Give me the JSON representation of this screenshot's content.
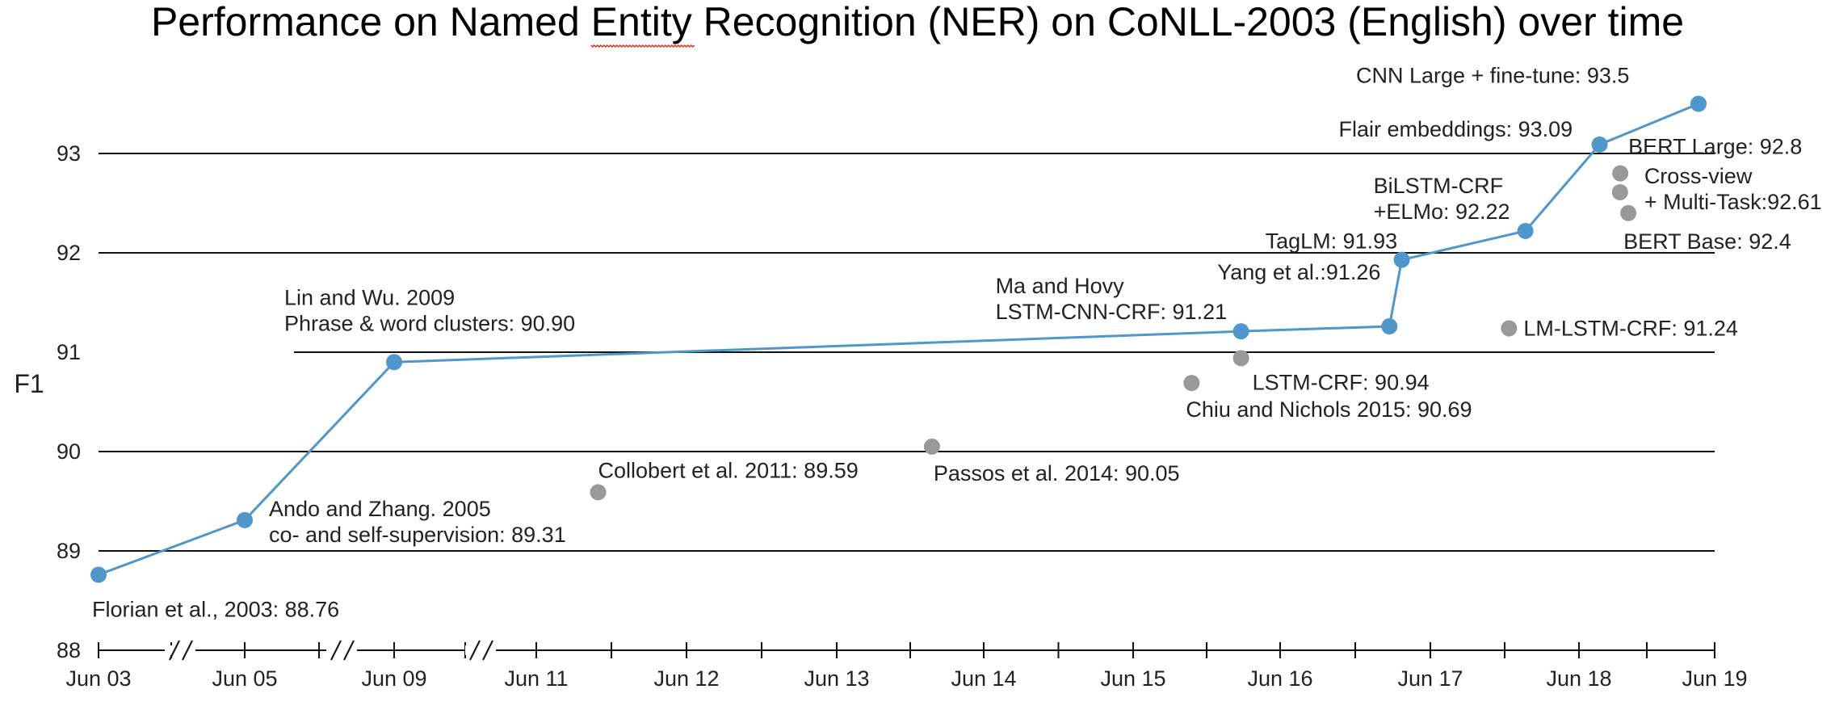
{
  "chart_data": {
    "type": "scatter",
    "title": "Performance on Named Entity Recognition (NER) on CoNLL-2003 (English) over time",
    "ylabel": "F1",
    "xlabel": "",
    "ylim": [
      88,
      93.5
    ],
    "yticks": [
      "88",
      "89",
      "90",
      "91",
      "92",
      "93"
    ],
    "xticks": [
      "Jun 03",
      "Jun 05",
      "Jun 09",
      "Jun 11",
      "Jun 12",
      "Jun 13",
      "Jun 14",
      "Jun 15",
      "Jun 16",
      "Jun 17",
      "Jun 18",
      "Jun 19"
    ],
    "axis_breaks": [
      [
        "Jun 03",
        "Jun 05"
      ],
      [
        "Jun 05",
        "Jun 09"
      ],
      [
        "Jun 09",
        "Jun 11"
      ]
    ],
    "grid": "horizontal",
    "colors": {
      "sota": "#4f97cb",
      "other": "#999999"
    },
    "series": [
      {
        "name": "",
        "style": "line",
        "points": [
          {
            "x": "2003-06",
            "y": 88.76,
            "label": [
              "Florian et al., 2003: 88.76"
            ]
          },
          {
            "x": "2005-06",
            "y": 89.31,
            "label": [
              "Ando and Zhang. 2005",
              "co- and self-supervision: 89.31"
            ]
          },
          {
            "x": "2009-06",
            "y": 90.9,
            "label": [
              "Lin and Wu. 2009",
              "Phrase & word clusters: 90.90"
            ]
          },
          {
            "x": "2016-03",
            "y": 91.21,
            "label": [
              "Ma and Hovy",
              "LSTM-CNN-CRF: 91.21"
            ]
          },
          {
            "x": "2017-03",
            "y": 91.26,
            "label": [
              "Yang et al.:91.26"
            ]
          },
          {
            "x": "2017-04",
            "y": 91.93,
            "label": [
              "TagLM: 91.93"
            ]
          },
          {
            "x": "2018-02",
            "y": 92.22,
            "label": [
              "BiLSTM-CRF",
              "+ELMo: 92.22"
            ]
          },
          {
            "x": "2018-08",
            "y": 93.09,
            "label": [
              "Flair embeddings: 93.09"
            ]
          },
          {
            "x": "2019-04",
            "y": 93.5,
            "label": [
              "CNN Large + fine-tune: 93.5"
            ]
          }
        ]
      },
      {
        "name": "",
        "style": "points",
        "points": [
          {
            "x": "2011-11",
            "y": 89.59,
            "label": [
              "Collobert et al. 2011: 89.59"
            ]
          },
          {
            "x": "2014-02",
            "y": 90.05,
            "label": [
              "Passos et al. 2014: 90.05"
            ]
          },
          {
            "x": "2015-11",
            "y": 90.69,
            "label": [
              "Chiu and Nichols 2015: 90.69"
            ]
          },
          {
            "x": "2016-03",
            "y": 90.94,
            "label": [
              "LSTM-CRF: 90.94"
            ]
          },
          {
            "x": "2018-01",
            "y": 91.24,
            "label": [
              "LM-LSTM-CRF: 91.24"
            ]
          },
          {
            "x": "2018-09",
            "y": 92.61,
            "label": [
              "Cross-view",
              "+ Multi-Task:92.61"
            ]
          },
          {
            "x": "2018-10",
            "y": 92.8,
            "label": [
              "BERT Large: 92.8"
            ]
          },
          {
            "x": "2018-10",
            "y": 92.4,
            "label": [
              "BERT Base: 92.4"
            ]
          }
        ]
      }
    ]
  }
}
